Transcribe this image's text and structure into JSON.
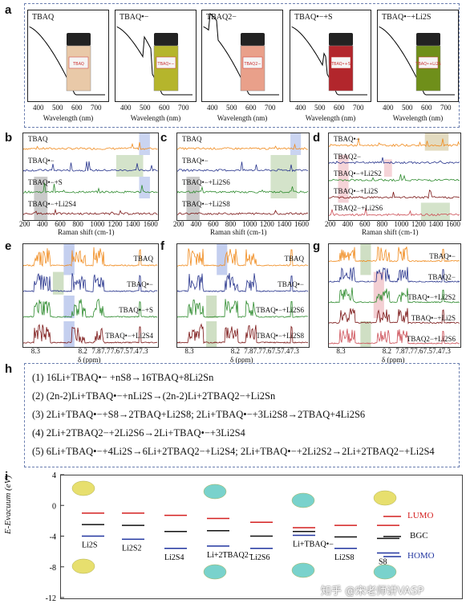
{
  "panels": {
    "a": "a",
    "b": "b",
    "c": "c",
    "d": "d",
    "e": "e",
    "f": "f",
    "g": "g",
    "h": "h",
    "i": "i"
  },
  "uv": {
    "xlabel": "Wavelength (nm)",
    "ticks": [
      "400",
      "500",
      "600",
      "700"
    ],
    "samples": [
      {
        "name": "TBAQ",
        "vial": "TBAQ",
        "liquid": "#e9c9a8"
      },
      {
        "name": "TBAQ•−",
        "vial": "TBAQ•−",
        "liquid": "#b5b52c"
      },
      {
        "name": "TBAQ2−",
        "vial": "TBAQ2−",
        "liquid": "#e9a08a"
      },
      {
        "name": "TBAQ•−+S",
        "vial": "TBAQ•+S",
        "liquid": "#b2262c"
      },
      {
        "name": "TBAQ•−+Li2S",
        "vial": "TBAQ•+Li2S",
        "liquid": "#6f8f1a"
      }
    ]
  },
  "raman": {
    "xlabel": "Raman shift (cm-1)",
    "ticks": [
      "200",
      "400",
      "600",
      "800",
      "1000",
      "1200",
      "1400",
      "1600"
    ],
    "b": [
      "TBAQ",
      "TBAQ•−",
      "TBAQ•−+S",
      "TBAQ•−+Li2S4"
    ],
    "c": [
      "TBAQ",
      "TBAQ•−",
      "TBAQ•−+Li2S6",
      "TBAQ•−+Li2S8"
    ],
    "d": [
      "TBAQ•−",
      "TBAQ2−",
      "TBAQ•−+Li2S2",
      "TBAQ•−+Li2S",
      "TBAQ2−+Li2S6"
    ],
    "colors": [
      "#f08a1c",
      "#26338c",
      "#2c8a2c",
      "#7a1414",
      "#cc4d55"
    ]
  },
  "nmr": {
    "xlabel": "δ (ppm)",
    "ticks": [
      "8.3",
      "8.2",
      "7.8",
      "7.7",
      "7.6",
      "7.5",
      "7.4",
      "7.3"
    ],
    "e": [
      "TBAQ",
      "TBAQ•−",
      "TBAQ•−+S",
      "TBAQ•−+Li2S4"
    ],
    "f": [
      "TBAQ",
      "TBAQ•−",
      "TBAQ•−+Li2S6",
      "TBAQ•−+Li2S8"
    ],
    "g": [
      "TBAQ•−",
      "TBAQ2−",
      "TBAQ•−+Li2S2",
      "TBAQ•−+Li2S",
      "TBAQ2−+Li2S6"
    ]
  },
  "equations": [
    "(1) 16Li+TBAQ•− +nS8→16TBAQ+8Li2Sn",
    "(2) (2n-2)Li+TBAQ•−+nLi2S→(2n-2)Li+2TBAQ2−+Li2Sn",
    "(3) 2Li+TBAQ•−+S8→2TBAQ+Li2S8; 2Li+TBAQ•−+3Li2S8→2TBAQ+4Li2S6",
    "(4) 2Li+2TBAQ2−+2Li2S6→2Li+TBAQ•−+3Li2S4",
    "(5) 6Li+TBAQ•−+4Li2S→6Li+2TBAQ2−+Li2S4; 2Li+TBAQ•−+2Li2S2→2Li+2TBAQ2−+Li2S4"
  ],
  "energy": {
    "ylabel": "E-Evacuum (eV)",
    "yticks": [
      "4",
      "0",
      "-4",
      "-8",
      "-12"
    ],
    "legend": {
      "lumo": "LUMO",
      "bgc": "BGC",
      "homo": "HOMO"
    },
    "colors": {
      "lumo": "#d42020",
      "bgc": "#111111",
      "homo": "#2236a0"
    },
    "species": [
      {
        "name": "Li2S",
        "lumo": -1.0,
        "bgc": -2.5,
        "homo": -4.0
      },
      {
        "name": "Li2S2",
        "lumo": -1.0,
        "bgc": -2.6,
        "homo": -4.4
      },
      {
        "name": "Li2S4",
        "lumo": -1.3,
        "bgc": -3.4,
        "homo": -5.6
      },
      {
        "name": "Li+2TBAQ2−",
        "lumo": -1.7,
        "bgc": -3.3,
        "homo": -5.3
      },
      {
        "name": "Li2S6",
        "lumo": -2.2,
        "bgc": -4.0,
        "homo": -5.6
      },
      {
        "name": "Li+TBAQ•−",
        "lumo": -2.9,
        "bgc": -3.4,
        "homo": -3.9
      },
      {
        "name": "Li2S8",
        "lumo": -2.6,
        "bgc": -4.1,
        "homo": -5.6
      },
      {
        "name": "S8",
        "lumo": -2.6,
        "bgc": -4.3,
        "homo": -6.2
      }
    ],
    "watermark": "知乎 @宋老师讲VASP"
  }
}
